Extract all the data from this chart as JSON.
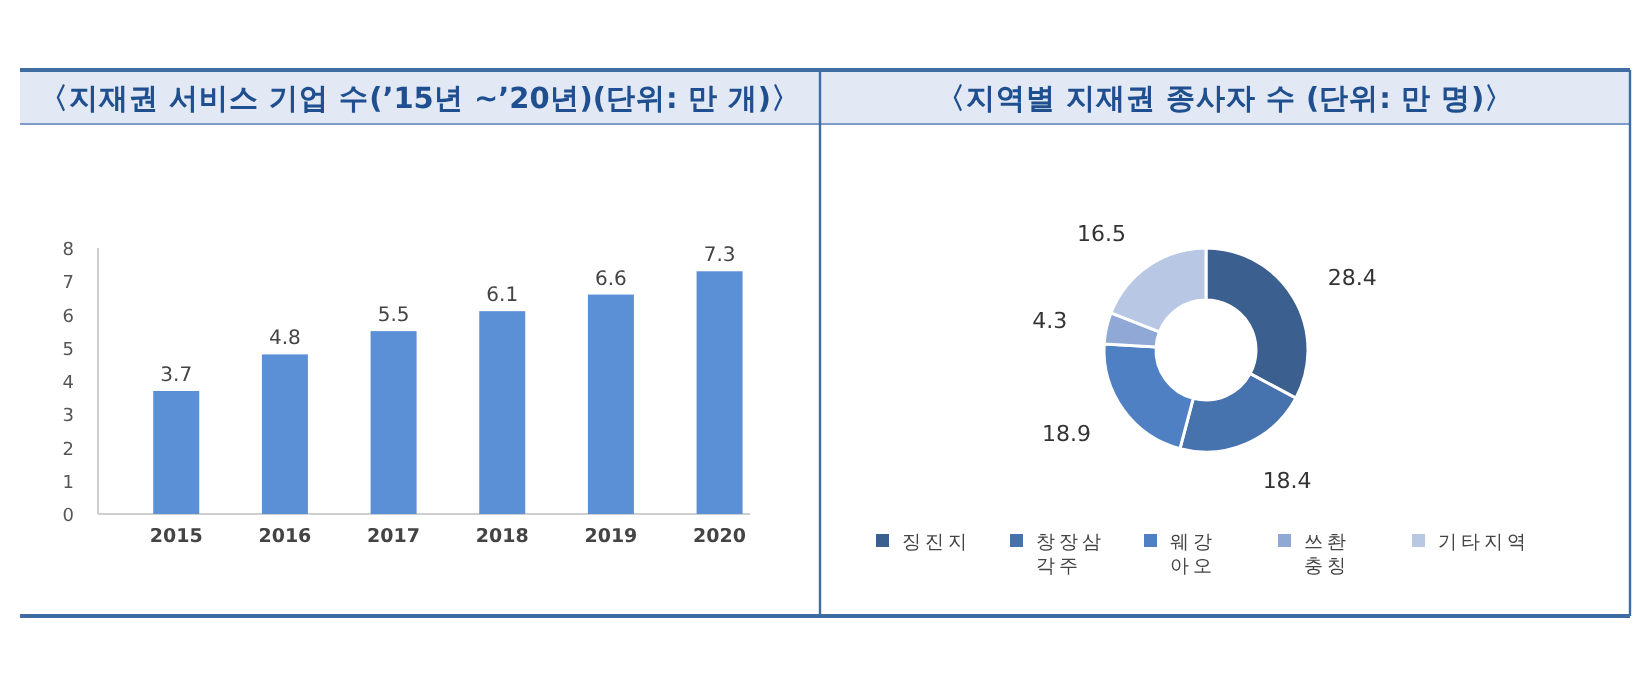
{
  "chart_data": [
    {
      "type": "bar",
      "title": "〈지재권 서비스 기업 수(’15년 ~’20년)(단위: 만 개)〉",
      "categories": [
        "2015",
        "2016",
        "2017",
        "2018",
        "2019",
        "2020"
      ],
      "values": [
        3.7,
        4.8,
        5.5,
        6.1,
        6.6,
        7.3
      ],
      "color": "#5b8fd6",
      "ylim": [
        0,
        8
      ],
      "yticks": [
        0,
        1,
        2,
        3,
        4,
        5,
        6,
        7,
        8
      ],
      "data_labels": true
    },
    {
      "type": "donut",
      "title": "〈지역별 지재권 종사자 수 (단위: 만 명)〉",
      "categories": [
        "징진지",
        "창장삼\n각주",
        "웨강\n아오",
        "쓰촨\n충칭",
        "기타지역"
      ],
      "values": [
        28.4,
        18.4,
        18.9,
        4.3,
        16.5
      ],
      "colors": [
        "#3b5f8e",
        "#4672ad",
        "#4f80c4",
        "#8fa8d5",
        "#b7c7e4"
      ],
      "data_labels": true,
      "legend": "bottom"
    }
  ]
}
